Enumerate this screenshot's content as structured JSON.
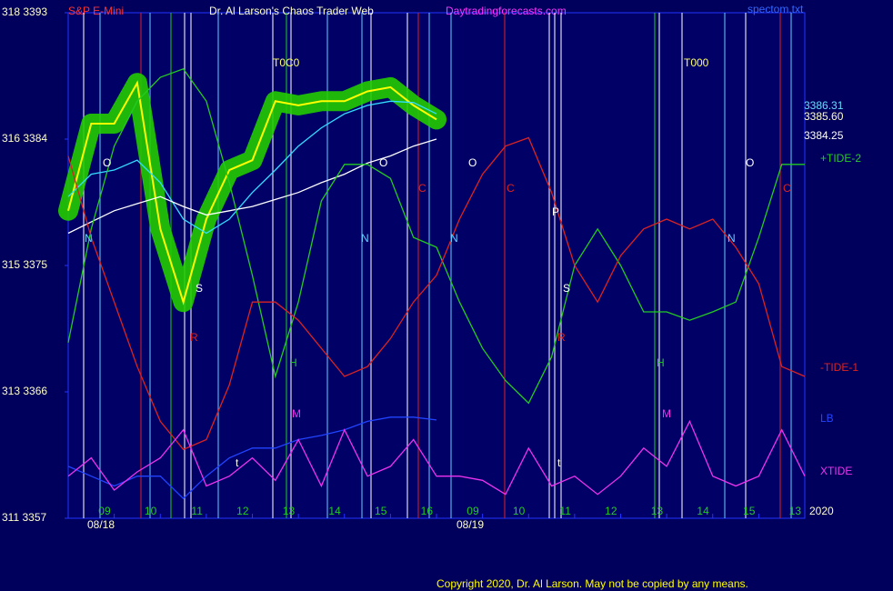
{
  "chart_data": {
    "type": "line",
    "title": "Dr. Al Larson's Chaos Trader Web",
    "instrument": "S&P E-Mini",
    "site": "Daytradingforecasts.com",
    "file": "spectom.txt",
    "copyright": "Copyright 2020, Dr. Al Larson. May not be copied by any means.",
    "year": "2020",
    "dates": [
      "08/18",
      "08/19"
    ],
    "level_labels": [
      "3386.31",
      "3385.60",
      "3384.25"
    ],
    "annotations": [
      "T0C0",
      "T000",
      "O",
      "O",
      "O",
      "O",
      "N",
      "N",
      "N",
      "N",
      "C",
      "C",
      "C",
      "P",
      "S",
      "S",
      "R",
      "R",
      "H",
      "H",
      "M",
      "M",
      "t",
      "t"
    ],
    "xlim": [
      0,
      16
    ],
    "xticks": [
      {
        "value": 1,
        "label": "09"
      },
      {
        "value": 2,
        "label": "10"
      },
      {
        "value": 3,
        "label": "11"
      },
      {
        "value": 4,
        "label": "12"
      },
      {
        "value": 5,
        "label": "13"
      },
      {
        "value": 6,
        "label": "14"
      },
      {
        "value": 7,
        "label": "15"
      },
      {
        "value": 8,
        "label": "16"
      },
      {
        "value": 9,
        "label": "09"
      },
      {
        "value": 10,
        "label": "10"
      },
      {
        "value": 11,
        "label": "11"
      },
      {
        "value": 12,
        "label": "12"
      },
      {
        "value": 13,
        "label": "13"
      },
      {
        "value": 14,
        "label": "14"
      },
      {
        "value": 15,
        "label": "15"
      },
      {
        "value": 16,
        "label": "13"
      }
    ],
    "ylim": [
      3357,
      3393
    ],
    "yticks": [
      {
        "value": 3393,
        "label": "318 3393"
      },
      {
        "value": 3384,
        "label": "316 3384"
      },
      {
        "value": 3375,
        "label": "315 3375"
      },
      {
        "value": 3366,
        "label": "313 3366"
      },
      {
        "value": 3357,
        "label": "311 3357"
      }
    ],
    "x": [
      0,
      0.5,
      1,
      1.5,
      2,
      2.5,
      3,
      3.5,
      4,
      4.5,
      5,
      5.5,
      6,
      6.5,
      7,
      7.5,
      8,
      8.5,
      9,
      9.5,
      10,
      10.5,
      11,
      11.5,
      12,
      12.5,
      13,
      13.5,
      14,
      14.5,
      15,
      15.5,
      16
    ],
    "series": [
      {
        "color": "#ffff00",
        "glow": "#22cc00",
        "values": [
          3378.9,
          3385.1,
          3385.1,
          3388.0,
          3377.6,
          3372.4,
          3378.3,
          3381.8,
          3382.5,
          3386.7,
          3386.4,
          3386.7,
          3386.7,
          3387.4,
          3387.7,
          3386.4,
          3385.4,
          null,
          null,
          null,
          null,
          null,
          null,
          null,
          null,
          null,
          null,
          null,
          null,
          null,
          null,
          null,
          null
        ]
      },
      {
        "color": "#33ddff",
        "values": [
          3379.9,
          3381.5,
          3381.8,
          3382.5,
          3380.9,
          3378.3,
          3377.3,
          3378.3,
          3380.2,
          3381.8,
          3383.5,
          3384.8,
          3385.8,
          3386.4,
          3386.7,
          3386.6,
          3385.8,
          null,
          null,
          null,
          null,
          null,
          null,
          null,
          null,
          null,
          null,
          null,
          null,
          null,
          null,
          null,
          null
        ]
      },
      {
        "color": "#ffffff",
        "values": [
          3377.3,
          3378.1,
          3378.9,
          3379.4,
          3379.9,
          3379.2,
          3378.6,
          3378.9,
          3379.2,
          3379.7,
          3380.2,
          3380.9,
          3381.5,
          3382.3,
          3382.8,
          3383.5,
          3384.0,
          null,
          null,
          null,
          null,
          null,
          null,
          null,
          null,
          null,
          null,
          null,
          null,
          null,
          null,
          null,
          null
        ]
      },
      {
        "name": "+TIDE-2",
        "color": "#22cc22",
        "values": [
          3369.5,
          3377.6,
          3383.5,
          3386.7,
          3388.4,
          3389.0,
          3386.7,
          3380.9,
          3374.3,
          3367.1,
          3372.4,
          3379.6,
          3382.2,
          3382.2,
          3381.2,
          3377.0,
          3376.3,
          3372.4,
          3369.1,
          3366.8,
          3365.2,
          3368.5,
          3375.0,
          3377.6,
          3375.0,
          3371.7,
          3371.7,
          3371.1,
          3371.7,
          3372.4,
          3377.0,
          3382.2,
          3382.2
        ]
      },
      {
        "name": "-TIDE-1",
        "color": "#dd2222",
        "values": [
          3382.8,
          3377.0,
          3372.4,
          3367.8,
          3363.9,
          3361.9,
          3362.6,
          3366.5,
          3372.4,
          3372.4,
          3371.1,
          3369.1,
          3367.1,
          3367.8,
          3369.8,
          3372.4,
          3374.3,
          3378.3,
          3381.5,
          3383.5,
          3384.1,
          3380.2,
          3375.0,
          3372.4,
          3375.7,
          3377.6,
          3378.3,
          3377.6,
          3378.3,
          3376.3,
          3373.7,
          3367.8,
          3367.1
        ]
      },
      {
        "name": "LB",
        "color": "#2244ff",
        "values": [
          3360.7,
          3360.0,
          3359.3,
          3360.0,
          3360.0,
          3358.4,
          3360.0,
          3361.3,
          3362.0,
          3362.0,
          3362.6,
          3362.9,
          3363.3,
          3363.9,
          3364.2,
          3364.2,
          3364.0,
          null,
          null,
          null,
          null,
          null,
          null,
          null,
          null,
          null,
          null,
          null,
          null,
          null,
          null,
          null,
          null
        ]
      },
      {
        "name": "XTIDE",
        "color": "#ee33ee",
        "values": [
          3360.0,
          3361.3,
          3359.0,
          3360.3,
          3361.3,
          3363.3,
          3359.3,
          3360.0,
          3361.3,
          3359.7,
          3362.6,
          3359.3,
          3363.3,
          3360.0,
          3360.7,
          3362.6,
          3360.0,
          3360.0,
          3359.7,
          3358.7,
          3362.0,
          3359.3,
          3360.0,
          3358.7,
          3360.0,
          3362.0,
          3360.7,
          3363.9,
          3360.0,
          3359.3,
          3360.0,
          3363.3,
          3360.0
        ]
      }
    ]
  }
}
